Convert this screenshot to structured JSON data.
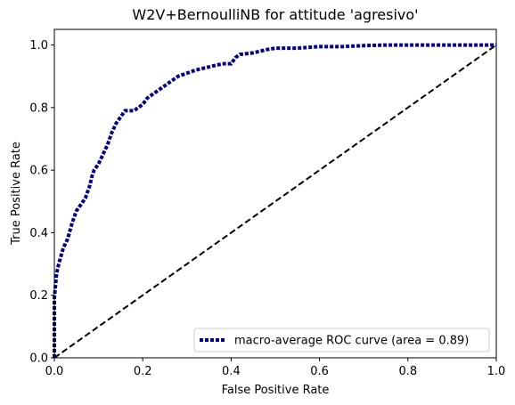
{
  "chart_data": {
    "type": "line",
    "title": "W2V+BernoulliNB for attitude 'agresivo'",
    "xlabel": "False Positive Rate",
    "ylabel": "True Positive Rate",
    "xlim": [
      0.0,
      1.0
    ],
    "ylim": [
      0.0,
      1.05
    ],
    "x_ticks": [
      0.0,
      0.2,
      0.4,
      0.6,
      0.8,
      1.0
    ],
    "y_ticks": [
      0.0,
      0.2,
      0.4,
      0.6,
      0.8,
      1.0
    ],
    "x_tick_labels": [
      "0.0",
      "0.2",
      "0.4",
      "0.6",
      "0.8",
      "1.0"
    ],
    "y_tick_labels": [
      "0.0",
      "0.2",
      "0.4",
      "0.6",
      "0.8",
      "1.0"
    ],
    "grid": false,
    "legend_position": "lower-right",
    "series": [
      {
        "name": "macro-average ROC curve (area = 0.89)",
        "color": "#000080",
        "style": "dotted",
        "x": [
          0.0,
          0.0,
          0.005,
          0.01,
          0.02,
          0.03,
          0.04,
          0.05,
          0.06,
          0.07,
          0.08,
          0.085,
          0.09,
          0.1,
          0.11,
          0.12,
          0.13,
          0.14,
          0.15,
          0.16,
          0.17,
          0.18,
          0.19,
          0.2,
          0.21,
          0.22,
          0.24,
          0.26,
          0.28,
          0.3,
          0.32,
          0.35,
          0.38,
          0.4,
          0.405,
          0.41,
          0.42,
          0.45,
          0.48,
          0.5,
          0.55,
          0.6,
          0.65,
          0.7,
          0.75,
          0.8,
          0.85,
          0.9,
          0.95,
          1.0
        ],
        "y": [
          0.0,
          0.19,
          0.27,
          0.3,
          0.35,
          0.38,
          0.43,
          0.47,
          0.49,
          0.51,
          0.55,
          0.58,
          0.6,
          0.62,
          0.65,
          0.68,
          0.72,
          0.75,
          0.77,
          0.79,
          0.79,
          0.79,
          0.8,
          0.81,
          0.83,
          0.84,
          0.86,
          0.88,
          0.9,
          0.91,
          0.92,
          0.93,
          0.94,
          0.94,
          0.95,
          0.96,
          0.97,
          0.975,
          0.985,
          0.99,
          0.99,
          0.995,
          0.995,
          0.998,
          1.0,
          1.0,
          1.0,
          1.0,
          1.0,
          1.0
        ]
      },
      {
        "name": "",
        "color": "#000000",
        "style": "dashed",
        "x": [
          0.0,
          1.0
        ],
        "y": [
          0.0,
          1.0
        ]
      }
    ]
  }
}
